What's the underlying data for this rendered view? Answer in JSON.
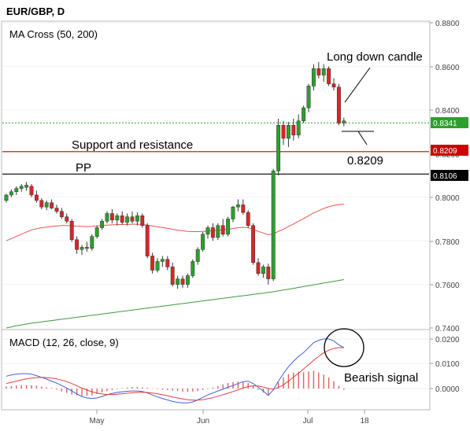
{
  "header": {
    "symbol": "EUR/GBP, D"
  },
  "price_panel": {
    "label": "MA Cross (50, 200)",
    "y_ticks": [
      "0.8800",
      "0.8600",
      "0.8400",
      "0.8200",
      "0.8000",
      "0.7800",
      "0.7600",
      "0.7400"
    ],
    "last_price_tag": "0.8341",
    "support_tag": "0.8209",
    "pp_tag": "0.8106",
    "annotations": {
      "long_down_candle": "Long down candle",
      "support_resistance": "Support and resistance",
      "pp": "PP",
      "level_value": "0.8209"
    }
  },
  "macd_panel": {
    "label": "MACD (12, 26, close, 9)",
    "y_ticks": [
      "0.0200",
      "0.0100",
      "0.0000"
    ],
    "annotation": "Bearish signal"
  },
  "x_axis": {
    "labels": [
      "May",
      "Jun",
      "Jul",
      "18"
    ]
  },
  "colors": {
    "bull": "#2ca02c",
    "bear": "#d62728",
    "ma50": "#e8524f",
    "ma200": "#3e9a3e",
    "macd_line": "#4060d8",
    "signal_line": "#e04040",
    "support_line": "#cc0000",
    "pp_line": "#000000",
    "last_price": "#2ca02c"
  },
  "chart_data": [
    {
      "type": "candlestick",
      "title": "EUR/GBP, D",
      "ylim": [
        0.74,
        0.88
      ],
      "x_labels": [
        "May",
        "Jun",
        "Jul",
        "18"
      ],
      "horizontal_levels": {
        "last": 0.8341,
        "support_resistance": 0.8209,
        "pp": 0.8106
      },
      "ohlc": [
        [
          0.7985,
          0.8015,
          0.7975,
          0.801
        ],
        [
          0.801,
          0.8035,
          0.8,
          0.8025
        ],
        [
          0.8025,
          0.805,
          0.801,
          0.804
        ],
        [
          0.804,
          0.806,
          0.8025,
          0.805
        ],
        [
          0.8045,
          0.807,
          0.803,
          0.8055
        ],
        [
          0.805,
          0.806,
          0.8,
          0.801
        ],
        [
          0.801,
          0.803,
          0.7975,
          0.7985
        ],
        [
          0.7985,
          0.7995,
          0.7945,
          0.7955
        ],
        [
          0.7955,
          0.7985,
          0.794,
          0.7975
        ],
        [
          0.7975,
          0.799,
          0.7945,
          0.795
        ],
        [
          0.795,
          0.7965,
          0.7925,
          0.7935
        ],
        [
          0.7935,
          0.795,
          0.79,
          0.791
        ],
        [
          0.791,
          0.7925,
          0.788,
          0.789
        ],
        [
          0.789,
          0.79,
          0.7795,
          0.7805
        ],
        [
          0.7805,
          0.782,
          0.774,
          0.776
        ],
        [
          0.776,
          0.778,
          0.7735,
          0.777
        ],
        [
          0.777,
          0.7795,
          0.775,
          0.7765
        ],
        [
          0.7765,
          0.783,
          0.7755,
          0.782
        ],
        [
          0.782,
          0.787,
          0.781,
          0.786
        ],
        [
          0.786,
          0.79,
          0.785,
          0.789
        ],
        [
          0.789,
          0.7935,
          0.788,
          0.7925
        ],
        [
          0.7925,
          0.7945,
          0.788,
          0.7895
        ],
        [
          0.7895,
          0.7925,
          0.787,
          0.7915
        ],
        [
          0.7915,
          0.7935,
          0.7875,
          0.7885
        ],
        [
          0.7885,
          0.7925,
          0.787,
          0.791
        ],
        [
          0.791,
          0.7935,
          0.788,
          0.789
        ],
        [
          0.789,
          0.793,
          0.787,
          0.7915
        ],
        [
          0.7915,
          0.7925,
          0.786,
          0.787
        ],
        [
          0.787,
          0.788,
          0.772,
          0.773
        ],
        [
          0.773,
          0.7745,
          0.765,
          0.7665
        ],
        [
          0.7665,
          0.772,
          0.7655,
          0.7705
        ],
        [
          0.7705,
          0.773,
          0.768,
          0.7715
        ],
        [
          0.7715,
          0.773,
          0.7665,
          0.768
        ],
        [
          0.768,
          0.77,
          0.759,
          0.76
        ],
        [
          0.76,
          0.764,
          0.758,
          0.7625
        ],
        [
          0.7625,
          0.764,
          0.7585,
          0.76
        ],
        [
          0.76,
          0.765,
          0.7585,
          0.764
        ],
        [
          0.764,
          0.7715,
          0.763,
          0.7705
        ],
        [
          0.7705,
          0.777,
          0.769,
          0.776
        ],
        [
          0.776,
          0.784,
          0.775,
          0.783
        ],
        [
          0.783,
          0.787,
          0.781,
          0.786
        ],
        [
          0.786,
          0.788,
          0.78,
          0.7815
        ],
        [
          0.7815,
          0.788,
          0.7805,
          0.787
        ],
        [
          0.787,
          0.79,
          0.782,
          0.783
        ],
        [
          0.783,
          0.791,
          0.782,
          0.79
        ],
        [
          0.79,
          0.796,
          0.7885,
          0.7955
        ],
        [
          0.7955,
          0.799,
          0.7935,
          0.7965
        ],
        [
          0.7965,
          0.799,
          0.792,
          0.793
        ],
        [
          0.793,
          0.794,
          0.786,
          0.787
        ],
        [
          0.787,
          0.788,
          0.769,
          0.77
        ],
        [
          0.77,
          0.772,
          0.764,
          0.765
        ],
        [
          0.765,
          0.769,
          0.763,
          0.768
        ],
        [
          0.768,
          0.7695,
          0.76,
          0.7625
        ],
        [
          0.7625,
          0.813,
          0.7615,
          0.812
        ],
        [
          0.812,
          0.836,
          0.81,
          0.833
        ],
        [
          0.833,
          0.835,
          0.824,
          0.827
        ],
        [
          0.827,
          0.8345,
          0.823,
          0.833
        ],
        [
          0.833,
          0.836,
          0.826,
          0.8285
        ],
        [
          0.8285,
          0.838,
          0.827,
          0.835
        ],
        [
          0.835,
          0.842,
          0.834,
          0.841
        ],
        [
          0.841,
          0.852,
          0.839,
          0.851
        ],
        [
          0.851,
          0.861,
          0.849,
          0.859
        ],
        [
          0.859,
          0.862,
          0.8545,
          0.856
        ],
        [
          0.856,
          0.861,
          0.853,
          0.859
        ],
        [
          0.859,
          0.86,
          0.851,
          0.852
        ],
        [
          0.852,
          0.8545,
          0.849,
          0.8505
        ],
        [
          0.8505,
          0.852,
          0.833,
          0.834
        ],
        [
          0.834,
          0.8365,
          0.8325,
          0.835
        ]
      ],
      "ma50": [
        0.78,
        0.781,
        0.782,
        0.783,
        0.784,
        0.785,
        0.7855,
        0.786,
        0.7863,
        0.7866,
        0.7868,
        0.787,
        0.787,
        0.7869,
        0.7867,
        0.7866,
        0.7865,
        0.7866,
        0.7868,
        0.787,
        0.7872,
        0.7873,
        0.7874,
        0.7875,
        0.7875,
        0.7876,
        0.7876,
        0.7875,
        0.7872,
        0.7868,
        0.7864,
        0.7861,
        0.7857,
        0.7853,
        0.7849,
        0.7846,
        0.7843,
        0.7842,
        0.7842,
        0.7843,
        0.7845,
        0.7846,
        0.7848,
        0.785,
        0.7853,
        0.7856,
        0.786,
        0.7862,
        0.786,
        0.7853,
        0.7843,
        0.7836,
        0.7828,
        0.7832,
        0.7843,
        0.7853,
        0.7866,
        0.7877,
        0.789,
        0.7902,
        0.7915,
        0.7928,
        0.7938,
        0.7948,
        0.7956,
        0.7962,
        0.7966,
        0.7968
      ],
      "ma200": [
        0.74,
        0.7405,
        0.741,
        0.7414,
        0.7418,
        0.7422,
        0.7425,
        0.7428,
        0.7431,
        0.7434,
        0.7437,
        0.744,
        0.7443,
        0.7446,
        0.7449,
        0.7452,
        0.7455,
        0.7458,
        0.7461,
        0.7464,
        0.7467,
        0.747,
        0.7473,
        0.7476,
        0.7479,
        0.7482,
        0.7485,
        0.7488,
        0.7491,
        0.7494,
        0.7497,
        0.75,
        0.7503,
        0.7506,
        0.7509,
        0.7512,
        0.7515,
        0.7518,
        0.7521,
        0.7524,
        0.7527,
        0.753,
        0.7533,
        0.7536,
        0.7539,
        0.7542,
        0.7545,
        0.7548,
        0.7551,
        0.7554,
        0.7557,
        0.756,
        0.7563,
        0.7566,
        0.757,
        0.7574,
        0.7578,
        0.7582,
        0.7586,
        0.759,
        0.7594,
        0.7598,
        0.7602,
        0.7606,
        0.761,
        0.7614,
        0.7618,
        0.7622
      ]
    },
    {
      "type": "line",
      "title": "MACD (12, 26, close, 9)",
      "ylim": [
        -0.009,
        0.022
      ],
      "series": [
        {
          "values": [
            0.005,
            0.0055,
            0.0058,
            0.006,
            0.006,
            0.0058,
            0.0052,
            0.0045,
            0.0038,
            0.003,
            0.0022,
            0.0012,
            0.0002,
            -0.001,
            -0.0022,
            -0.0032,
            -0.0038,
            -0.004,
            -0.0038,
            -0.0032,
            -0.0025,
            -0.002,
            -0.0016,
            -0.0013,
            -0.0011,
            -0.001,
            -0.001,
            -0.0012,
            -0.0018,
            -0.0026,
            -0.0034,
            -0.004,
            -0.0046,
            -0.0052,
            -0.0056,
            -0.0058,
            -0.0058,
            -0.0054,
            -0.0046,
            -0.0036,
            -0.0026,
            -0.0018,
            -0.001,
            -0.0003,
            0.0005,
            0.0012,
            0.002,
            0.0028,
            0.003,
            0.002,
            0.0005,
            -0.001,
            -0.0028,
            -0.0005,
            0.003,
            0.006,
            0.0088,
            0.011,
            0.013,
            0.0145,
            0.0165,
            0.0185,
            0.0195,
            0.02,
            0.02,
            0.0192,
            0.0176,
            0.0165
          ]
        },
        {
          "values": [
            0.002,
            0.0025,
            0.003,
            0.0035,
            0.0039,
            0.0042,
            0.0044,
            0.0045,
            0.0044,
            0.0042,
            0.0039,
            0.0034,
            0.0028,
            0.002,
            0.0011,
            0.0002,
            -0.0006,
            -0.0013,
            -0.0018,
            -0.0022,
            -0.0024,
            -0.0024,
            -0.0023,
            -0.0021,
            -0.0019,
            -0.0017,
            -0.0016,
            -0.0015,
            -0.0016,
            -0.0018,
            -0.0021,
            -0.0025,
            -0.0029,
            -0.0034,
            -0.0038,
            -0.0042,
            -0.0045,
            -0.0047,
            -0.0047,
            -0.0045,
            -0.0041,
            -0.0037,
            -0.0031,
            -0.0025,
            -0.0019,
            -0.0012,
            -0.0005,
            0.0002,
            0.0008,
            0.0011,
            0.001,
            0.0006,
            0.0,
            -0.0003,
            0.0004,
            0.0015,
            0.003,
            0.0046,
            0.0062,
            0.0079,
            0.0096,
            0.0114,
            0.013,
            0.0144,
            0.0155,
            0.0162,
            0.0165,
            0.0165
          ]
        }
      ],
      "histogram": [
        0.0008,
        0.001,
        0.0012,
        0.0014,
        0.0014,
        0.0013,
        0.0011,
        0.0008,
        0.0005,
        0.0002,
        -0.0004,
        -0.0012,
        -0.0018,
        -0.0024,
        -0.0028,
        -0.003,
        -0.003,
        -0.0028,
        -0.0022,
        -0.0016,
        -0.001,
        -0.0006,
        -0.0002,
        0.0002,
        0.0004,
        0.0006,
        0.0007,
        0.0005,
        0.0003,
        0.0001,
        -0.0002,
        -0.0004,
        -0.0006,
        -0.0008,
        -0.001,
        -0.0012,
        -0.0013,
        -0.0012,
        -0.001,
        -0.0006,
        -0.0002,
        0.0004,
        0.001,
        0.0016,
        0.0022,
        0.0026,
        0.0028,
        0.0026,
        0.0022,
        0.0012,
        -0.0005,
        -0.0016,
        -0.0028,
        -0.0002,
        0.0026,
        0.0045,
        0.0058,
        0.0064,
        0.0068,
        0.0066,
        0.0069,
        0.0071,
        0.0065,
        0.0056,
        0.0045,
        0.003,
        0.0011,
        -0.0005
      ]
    }
  ]
}
